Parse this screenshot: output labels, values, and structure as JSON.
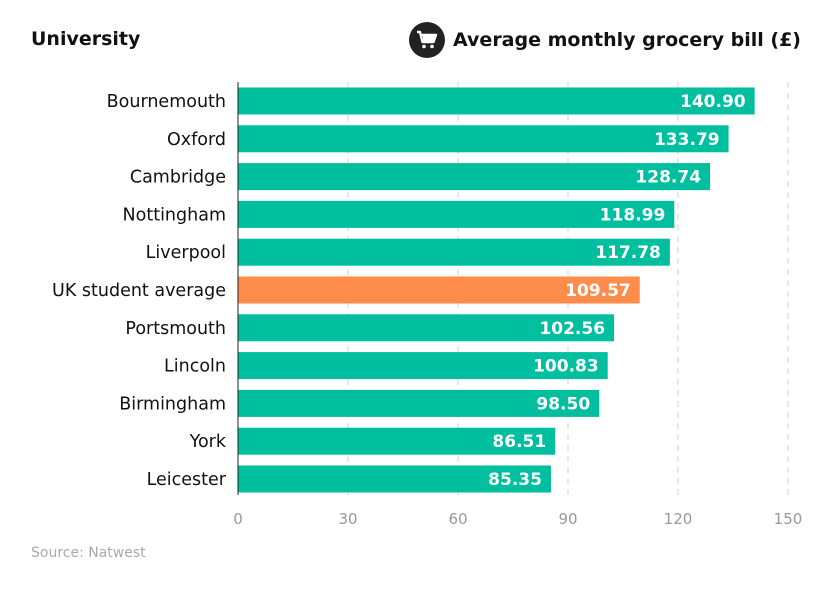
{
  "chart_data": {
    "type": "bar",
    "orientation": "horizontal",
    "category_header": "University",
    "title": "Average monthly grocery bill (£)",
    "title_icon": "shopping-cart-icon",
    "categories": [
      "Bournemouth",
      "Oxford",
      "Cambridge",
      "Nottingham",
      "Liverpool",
      "UK student average",
      "Portsmouth",
      "Lincoln",
      "Birmingham",
      "York",
      "Leicester"
    ],
    "values": [
      140.9,
      133.79,
      128.74,
      118.99,
      117.78,
      109.57,
      102.56,
      100.83,
      98.5,
      86.51,
      85.35
    ],
    "value_labels": [
      "140.90",
      "133.79",
      "128.74",
      "118.99",
      "117.78",
      "109.57",
      "102.56",
      "100.83",
      "98.50",
      "86.51",
      "85.35"
    ],
    "highlight": "UK student average",
    "xlim": [
      0,
      150
    ],
    "xticks": [
      "0",
      "30",
      "60",
      "90",
      "120",
      "150"
    ],
    "grid": "vertical dashed",
    "colors": {
      "bar": "#00BF9F",
      "highlight": "#FF8C4A",
      "label": "#ffffff"
    },
    "source": "Source: Natwest"
  }
}
